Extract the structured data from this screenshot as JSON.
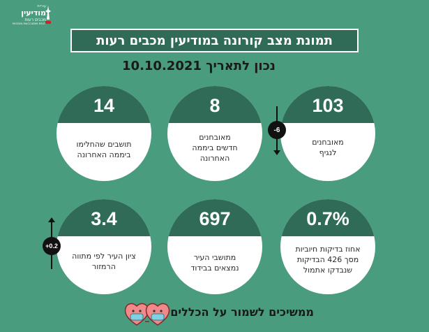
{
  "logo": {
    "line1": "עיריית",
    "line2": "מודיעין",
    "line3": "מכבים רעות",
    "line4": "MODIIN-MACCABIM-REUT"
  },
  "title": "תמונת מצב קורונה במודיעין מכבים רעות",
  "date_line": "נכון לתאריך  10.10.2021",
  "cards": [
    {
      "value": "103",
      "label_lines": [
        "מאובחנים",
        "לנגיף"
      ]
    },
    {
      "value": "8",
      "label_lines": [
        "מאובחנים",
        "חדשים ביממה",
        "האחרונה"
      ]
    },
    {
      "value": "14",
      "label_lines": [
        "תושבים שהחלימו",
        "ביממה האחרונה"
      ]
    },
    {
      "value": "0.7%",
      "label_lines": [
        "אחוז בדיקות חיוביות",
        "מסך 426 הבדיקות",
        "שנבדקו אתמול"
      ]
    },
    {
      "value": "697",
      "label_lines": [
        "מתושבי העיר",
        "נמצאים בבידוד"
      ]
    },
    {
      "value": "3.4",
      "label_lines": [
        "ציון העיר לפי מתווה",
        "הרמזור"
      ]
    }
  ],
  "changes": {
    "diagnosed_change": "-6",
    "score_change": "+0.2"
  },
  "footer": "ממשיכים לשמור על הכללים",
  "colors": {
    "background": "#4a9c7e",
    "dark_green": "#2f6b57",
    "card_bg": "#ffffff"
  }
}
